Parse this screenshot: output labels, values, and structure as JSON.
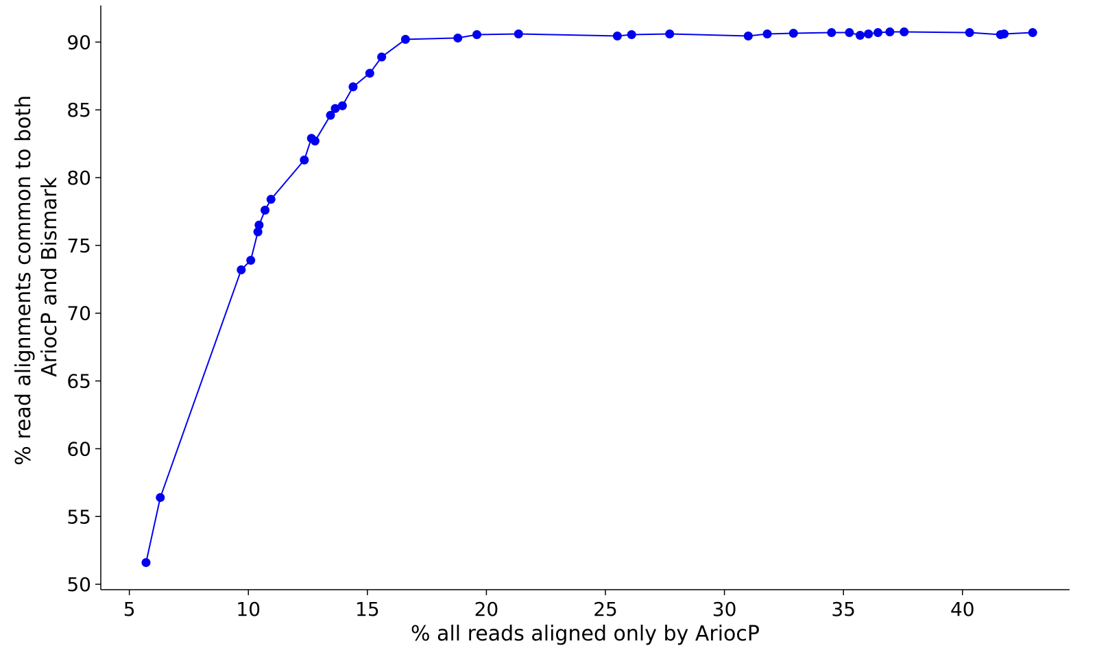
{
  "chart_data": {
    "type": "line",
    "title": "",
    "xlabel": "% all reads aligned only by AriocP",
    "ylabel_lines": [
      "% read alignments common to both",
      "AriocP and Bismark"
    ],
    "xlim": [
      3.8,
      44.5
    ],
    "ylim": [
      49.6,
      92.7
    ],
    "xticks": [
      5,
      10,
      15,
      20,
      25,
      30,
      35,
      40
    ],
    "yticks": [
      50,
      55,
      60,
      65,
      70,
      75,
      80,
      85,
      90
    ],
    "grid": false,
    "legend": "none",
    "series_color": "#0000ee",
    "series": [
      {
        "x": [
          5.7,
          6.3,
          9.7,
          10.1,
          10.4,
          10.45,
          10.7,
          10.95,
          12.35,
          12.65,
          12.8,
          13.45,
          13.65,
          13.95,
          14.4,
          15.1,
          15.6,
          16.6,
          18.8,
          19.6,
          21.35,
          25.5,
          26.1,
          27.7,
          31.0,
          31.8,
          32.9,
          34.5,
          35.25,
          35.7,
          36.05,
          36.45,
          36.95,
          37.55,
          40.3,
          41.6,
          41.75,
          42.95
        ],
        "y": [
          51.6,
          56.4,
          73.2,
          73.9,
          76.0,
          76.5,
          77.6,
          78.4,
          81.3,
          82.9,
          82.7,
          84.6,
          85.1,
          85.3,
          86.7,
          87.7,
          88.9,
          90.2,
          90.3,
          90.55,
          90.6,
          90.45,
          90.55,
          90.6,
          90.45,
          90.6,
          90.65,
          90.7,
          90.7,
          90.5,
          90.6,
          90.7,
          90.75,
          90.75,
          90.7,
          90.55,
          90.6,
          90.7
        ]
      }
    ]
  }
}
